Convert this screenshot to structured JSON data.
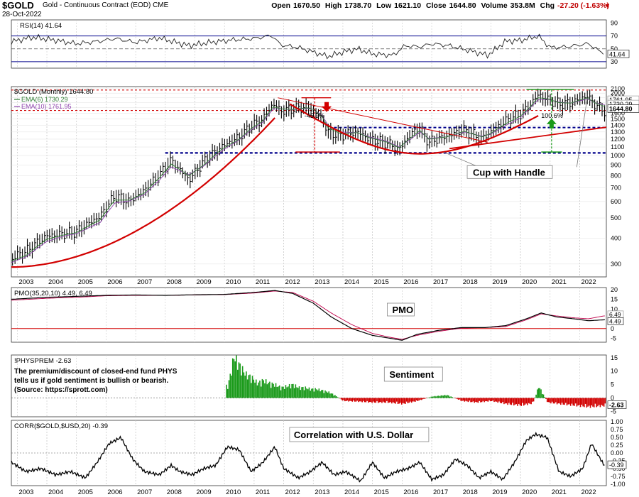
{
  "header": {
    "symbol": "$GOLD",
    "name": "Gold - Continuous Contract (EOD)",
    "exchange": "CME",
    "date": "28-Oct-2022",
    "open_label": "Open",
    "open": "1670.50",
    "high_label": "High",
    "high": "1738.70",
    "low_label": "Low",
    "low": "1621.10",
    "close_label": "Close",
    "close": "1644.80",
    "volume_label": "Volume",
    "volume": "353.8M",
    "chg_label": "Chg",
    "chg": "-27.20 (-1.63%)",
    "down_icon": "triangle-down-icon"
  },
  "years": [
    "2003",
    "2004",
    "2005",
    "2006",
    "2007",
    "2008",
    "2009",
    "2010",
    "2011",
    "2012",
    "2013",
    "2014",
    "2015",
    "2016",
    "2017",
    "2018",
    "2019",
    "2020",
    "2021",
    "2022"
  ],
  "colors": {
    "price": "#000000",
    "ema6": "#2e7d32",
    "ema10": "#8e44ad",
    "red": "#d20000",
    "blue": "#00008b",
    "green": "#1a9a1a",
    "pmo_signal": "#c0004a",
    "rsi_fill": "#1f3aa6"
  },
  "chart_data": [
    {
      "panel": "rsi",
      "type": "line",
      "title": "RSI(14) 41.64",
      "yticks": [
        90,
        70,
        50,
        30
      ],
      "ylim": [
        20,
        95
      ],
      "current_label": "41.64",
      "x": [
        2002.8,
        2003.5,
        2004.2,
        2005.0,
        2005.8,
        2006.3,
        2007.0,
        2007.8,
        2008.2,
        2008.8,
        2009.5,
        2010.3,
        2011.0,
        2011.6,
        2011.9,
        2012.5,
        2013.0,
        2013.5,
        2014.0,
        2014.5,
        2015.0,
        2015.7,
        2016.1,
        2016.6,
        2017.0,
        2017.6,
        2018.2,
        2018.9,
        2019.5,
        2020.0,
        2020.6,
        2021.0,
        2021.5,
        2022.0,
        2022.3,
        2022.82
      ],
      "values": [
        61,
        68,
        64,
        58,
        62,
        66,
        60,
        67,
        62,
        55,
        60,
        64,
        66,
        71,
        56,
        52,
        45,
        38,
        45,
        50,
        42,
        40,
        55,
        53,
        58,
        55,
        48,
        40,
        62,
        63,
        70,
        52,
        53,
        56,
        58,
        41.64
      ]
    },
    {
      "panel": "price",
      "type": "candlestick-line",
      "title": "$GOLD (Monthly) 1644.80",
      "legend": [
        {
          "name": "EMA(6)",
          "value": "1730.29"
        },
        {
          "name": "EMA(10)",
          "value": "1761.95"
        }
      ],
      "yticks": [
        2100,
        2000,
        1900,
        1800,
        1700,
        1600,
        1500,
        1400,
        1300,
        1200,
        1100,
        1000,
        900,
        800,
        700,
        600,
        500,
        400,
        300
      ],
      "ylim": [
        260,
        2150
      ],
      "scale": "log",
      "right_labels": [
        "1761.95",
        "1730.29",
        "1644.80"
      ],
      "x": [
        2002.8,
        2003.3,
        2004.0,
        2004.6,
        2005.0,
        2005.8,
        2006.3,
        2006.8,
        2007.3,
        2007.8,
        2008.2,
        2008.8,
        2009.3,
        2009.9,
        2010.5,
        2010.9,
        2011.3,
        2011.65,
        2011.9,
        2012.3,
        2012.8,
        2013.0,
        2013.3,
        2013.5,
        2013.9,
        2014.5,
        2014.9,
        2015.5,
        2015.9,
        2016.3,
        2016.6,
        2016.9,
        2017.5,
        2018.1,
        2018.7,
        2019.0,
        2019.6,
        2020.0,
        2020.3,
        2020.6,
        2020.9,
        2021.3,
        2021.7,
        2022.1,
        2022.25,
        2022.5,
        2022.82
      ],
      "values": [
        320,
        345,
        410,
        420,
        430,
        510,
        640,
        600,
        680,
        800,
        950,
        760,
        930,
        1100,
        1230,
        1380,
        1500,
        1780,
        1640,
        1680,
        1720,
        1650,
        1500,
        1300,
        1250,
        1300,
        1200,
        1150,
        1070,
        1270,
        1350,
        1160,
        1240,
        1330,
        1200,
        1300,
        1500,
        1580,
        1730,
        1970,
        1870,
        1780,
        1790,
        1900,
        1940,
        1770,
        1644.8
      ],
      "ema6": [
        310,
        330,
        395,
        415,
        425,
        490,
        610,
        610,
        660,
        780,
        910,
        800,
        900,
        1070,
        1200,
        1350,
        1470,
        1720,
        1680,
        1670,
        1700,
        1670,
        1540,
        1360,
        1280,
        1290,
        1220,
        1160,
        1090,
        1220,
        1320,
        1200,
        1230,
        1310,
        1230,
        1280,
        1450,
        1550,
        1700,
        1900,
        1880,
        1800,
        1790,
        1870,
        1900,
        1800,
        1730.29
      ],
      "ema10": [
        305,
        325,
        385,
        410,
        420,
        475,
        590,
        605,
        650,
        760,
        880,
        810,
        890,
        1050,
        1190,
        1330,
        1450,
        1680,
        1680,
        1665,
        1690,
        1670,
        1560,
        1400,
        1300,
        1290,
        1230,
        1170,
        1100,
        1200,
        1300,
        1210,
        1230,
        1300,
        1240,
        1270,
        1420,
        1520,
        1680,
        1860,
        1870,
        1810,
        1790,
        1850,
        1880,
        1800,
        1761.95
      ]
    },
    {
      "panel": "pmo",
      "type": "line",
      "title": "PMO(35,20,10) 4.49, 6.49",
      "yticks": [
        20,
        15,
        10,
        5,
        0,
        -5
      ],
      "ylim": [
        -7,
        21
      ],
      "right_labels": [
        "6.49",
        "4.49"
      ],
      "x": [
        2002.8,
        2004.0,
        2005.0,
        2006.0,
        2007.0,
        2008.0,
        2009.0,
        2010.0,
        2011.0,
        2011.7,
        2012.3,
        2013.0,
        2013.6,
        2014.3,
        2015.0,
        2015.6,
        2016.0,
        2016.5,
        2017.2,
        2018.0,
        2018.8,
        2019.5,
        2020.2,
        2020.7,
        2021.2,
        2021.8,
        2022.3,
        2022.82
      ],
      "values": [
        15,
        16,
        16.5,
        17,
        17.2,
        17,
        17.3,
        17.5,
        18.5,
        19.5,
        18,
        13,
        6,
        0,
        -3.5,
        -5,
        -6,
        -3,
        -1,
        0.5,
        0.5,
        1.5,
        5,
        8,
        6,
        5,
        4,
        4.49
      ],
      "signal": [
        14.5,
        15.5,
        16,
        16.8,
        17,
        17,
        17.2,
        17.4,
        18.2,
        19.2,
        18.5,
        14,
        8,
        2,
        -2.5,
        -4.5,
        -5.5,
        -3.5,
        -1.5,
        0.2,
        0.5,
        1,
        4.5,
        7.5,
        6.5,
        5.5,
        5,
        6.49
      ]
    },
    {
      "panel": "sentiment",
      "type": "bar",
      "title": "!PHYSPREM -2.63",
      "yticks": [
        15,
        10,
        5,
        0,
        -5
      ],
      "ylim": [
        -7,
        16
      ],
      "current_label": "-2.63",
      "x": [
        2010.1,
        2010.3,
        2010.5,
        2010.7,
        2010.9,
        2011.1,
        2011.3,
        2011.5,
        2011.7,
        2011.9,
        2012.1,
        2012.3,
        2012.5,
        2012.7,
        2012.9,
        2013.1,
        2013.3,
        2013.5,
        2013.7,
        2014.0,
        2014.5,
        2015.0,
        2015.5,
        2016.0,
        2016.5,
        2017.0,
        2017.5,
        2018.0,
        2018.5,
        2019.0,
        2019.5,
        2020.0,
        2020.4,
        2020.6,
        2020.9,
        2021.3,
        2021.8,
        2022.3,
        2022.82
      ],
      "values": [
        4,
        14,
        11,
        8,
        7,
        5,
        6,
        5,
        4.5,
        3.5,
        4,
        4.5,
        3.5,
        3.5,
        3,
        3,
        2.5,
        2,
        1,
        -1,
        -1.2,
        -1.5,
        -1.5,
        -2,
        -1,
        0.5,
        1,
        -1,
        -1.5,
        -1,
        -2,
        -2.5,
        -1.8,
        4,
        -1.5,
        -2,
        -2.5,
        -3,
        -2.63
      ]
    },
    {
      "panel": "corr",
      "type": "line",
      "title": "CORR($GOLD,$USD,20) -0.39",
      "yticks": [
        1.0,
        0.75,
        0.5,
        0.25,
        0.0,
        -0.25,
        -0.5,
        -0.75,
        -1.0
      ],
      "ylim": [
        -1.05,
        1.05
      ],
      "current_label": "-0.39",
      "x": [
        2002.8,
        2003.3,
        2003.8,
        2004.3,
        2004.8,
        2005.3,
        2005.7,
        2006.1,
        2006.5,
        2006.9,
        2007.3,
        2007.8,
        2008.2,
        2008.5,
        2008.9,
        2009.3,
        2009.7,
        2010.1,
        2010.5,
        2010.9,
        2011.3,
        2011.7,
        2012.0,
        2012.5,
        2012.9,
        2013.3,
        2013.7,
        2014.1,
        2014.6,
        2015.0,
        2015.4,
        2015.8,
        2016.2,
        2016.6,
        2017.0,
        2017.4,
        2017.8,
        2018.2,
        2018.6,
        2019.0,
        2019.4,
        2019.8,
        2020.2,
        2020.5,
        2020.9,
        2021.3,
        2021.7,
        2022.1,
        2022.4,
        2022.82
      ],
      "values": [
        -0.3,
        -0.6,
        -0.5,
        -0.7,
        -0.6,
        -0.8,
        -0.3,
        0.3,
        0.5,
        -0.2,
        -0.6,
        -0.7,
        -0.4,
        -0.6,
        -0.7,
        -0.5,
        -0.4,
        0.2,
        0.1,
        -0.6,
        -0.3,
        0.2,
        -0.5,
        -0.8,
        -0.6,
        -0.3,
        -0.7,
        -0.6,
        -0.9,
        -0.3,
        -0.8,
        -0.6,
        -0.5,
        -0.3,
        -0.85,
        -0.7,
        -0.2,
        -0.4,
        -0.8,
        -0.6,
        -0.85,
        -0.3,
        0.4,
        0.6,
        0.5,
        -0.6,
        -0.75,
        -0.5,
        0.3,
        -0.39
      ]
    }
  ],
  "annotations": {
    "cup_handle": "Cup with Handle",
    "pmo_label": "PMO",
    "sentiment_label": "Sentiment",
    "corr_label": "Correlation with U.S. Dollar",
    "drop_pct": "-45.9%",
    "gain_pct": "100.6%",
    "sentiment_note_1": "The premium/discount of closed-end fund PHYS",
    "sentiment_note_2": "tells us if gold sentiment is bullish or bearish.",
    "sentiment_note_3": "(Source: https://sprott.com)"
  }
}
